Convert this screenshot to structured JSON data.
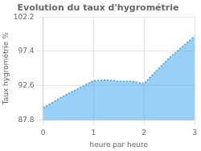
{
  "chart_data": {
    "type": "area",
    "title": "Evolution du taux d'hygrométrie",
    "x_label": "heure par heure",
    "y_label": "Taux hygrométrie %",
    "x": [
      0,
      0.5,
      1.0,
      1.25,
      1.5,
      1.75,
      2.0,
      2.5,
      3.0
    ],
    "values": [
      89.5,
      91.5,
      93.3,
      93.4,
      93.2,
      93.2,
      92.9,
      96.5,
      99.5
    ],
    "line_style": "dotted",
    "xlim": [
      0,
      3
    ],
    "xticks": [
      0,
      1,
      2,
      3
    ],
    "ylim": [
      87.8,
      102.2
    ],
    "yticks": [
      87.8,
      92.6,
      97.4,
      102.2
    ],
    "grid": true
  }
}
